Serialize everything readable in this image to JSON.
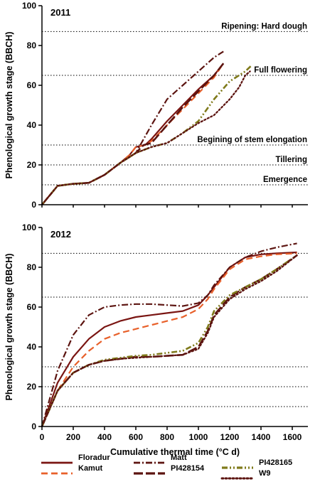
{
  "chart_data": [
    {
      "type": "line",
      "panel_label": "2011",
      "ylabel": "Phenological growth stage (BBCH)",
      "xlim": [
        0,
        1700
      ],
      "ylim": [
        0,
        100
      ],
      "yticks": [
        "0",
        "20",
        "40",
        "60",
        "80",
        "100"
      ],
      "grid": false,
      "reference_lines": [
        {
          "y": 10,
          "label": "Emergence"
        },
        {
          "y": 20,
          "label": "Tillering"
        },
        {
          "y": 30,
          "label": "Begining of stem elongation"
        },
        {
          "y": 65,
          "label": "Full flowering"
        },
        {
          "y": 87,
          "label": "Ripening: Hard dough"
        }
      ],
      "series": [
        {
          "name": "Floradur",
          "color": "#7a1512",
          "dash": "solid",
          "points": [
            [
              0,
              0
            ],
            [
              100,
              9.5
            ],
            [
              200,
              10.5
            ],
            [
              300,
              11
            ],
            [
              400,
              15
            ],
            [
              500,
              21
            ],
            [
              560,
              25
            ],
            [
              600,
              29
            ],
            [
              660,
              30
            ],
            [
              700,
              33
            ],
            [
              800,
              42
            ],
            [
              900,
              50
            ],
            [
              1000,
              58
            ],
            [
              1100,
              65
            ],
            [
              1160,
              71
            ]
          ]
        },
        {
          "name": "Kamut",
          "color": "#e8602a",
          "dash": "dash",
          "points": [
            [
              0,
              0
            ],
            [
              100,
              9.5
            ],
            [
              200,
              10.5
            ],
            [
              300,
              11
            ],
            [
              400,
              15
            ],
            [
              500,
              21
            ],
            [
              560,
              25
            ],
            [
              600,
              29
            ],
            [
              660,
              30
            ],
            [
              700,
              32
            ],
            [
              800,
              40
            ],
            [
              900,
              48
            ],
            [
              1000,
              56
            ],
            [
              1100,
              64
            ],
            [
              1160,
              71
            ]
          ]
        },
        {
          "name": "Matt",
          "color": "#5c1410",
          "dash": "dashdot",
          "points": [
            [
              0,
              0
            ],
            [
              100,
              9.5
            ],
            [
              200,
              10.5
            ],
            [
              300,
              11
            ],
            [
              400,
              15
            ],
            [
              500,
              21
            ],
            [
              600,
              26
            ],
            [
              700,
              40
            ],
            [
              800,
              53
            ],
            [
              900,
              60
            ],
            [
              1000,
              67
            ],
            [
              1100,
              74
            ],
            [
              1160,
              77
            ]
          ]
        },
        {
          "name": "PI428154",
          "color": "#5c1410",
          "dash": "longdash",
          "points": [
            [
              0,
              0
            ],
            [
              100,
              9.5
            ],
            [
              200,
              10.5
            ],
            [
              300,
              11
            ],
            [
              400,
              15
            ],
            [
              500,
              21
            ],
            [
              600,
              26
            ],
            [
              650,
              30
            ],
            [
              700,
              31
            ],
            [
              800,
              40
            ],
            [
              900,
              49
            ],
            [
              1000,
              57
            ],
            [
              1100,
              65
            ],
            [
              1160,
              71
            ]
          ]
        },
        {
          "name": "PI428165",
          "color": "#7f7a1a",
          "dash": "dashdotdot",
          "points": [
            [
              0,
              0
            ],
            [
              100,
              9.5
            ],
            [
              200,
              10.5
            ],
            [
              300,
              11
            ],
            [
              400,
              15
            ],
            [
              500,
              21
            ],
            [
              600,
              26
            ],
            [
              700,
              29
            ],
            [
              800,
              31
            ],
            [
              900,
              36
            ],
            [
              1000,
              42
            ],
            [
              1100,
              53
            ],
            [
              1200,
              62
            ],
            [
              1300,
              67
            ],
            [
              1340,
              70
            ]
          ]
        },
        {
          "name": "W9",
          "color": "#5c1410",
          "dash": "dot",
          "points": [
            [
              0,
              0
            ],
            [
              100,
              9.5
            ],
            [
              200,
              10.5
            ],
            [
              300,
              11
            ],
            [
              400,
              15
            ],
            [
              500,
              21
            ],
            [
              600,
              26
            ],
            [
              700,
              29
            ],
            [
              800,
              31
            ],
            [
              900,
              36
            ],
            [
              1000,
              41
            ],
            [
              1100,
              45
            ],
            [
              1200,
              53
            ],
            [
              1260,
              59
            ],
            [
              1300,
              65
            ],
            [
              1330,
              67
            ]
          ]
        }
      ]
    },
    {
      "type": "line",
      "panel_label": "2012",
      "ylabel": "Phenological growth stage (BBCH)",
      "xlabel": "Cumulative thermal time  (°C d)",
      "xlim": [
        0,
        1700
      ],
      "ylim": [
        0,
        100
      ],
      "xticks": [
        "0",
        "200",
        "400",
        "600",
        "800",
        "1000",
        "1200",
        "1400",
        "1600"
      ],
      "yticks": [
        "0",
        "20",
        "40",
        "60",
        "80",
        "100"
      ],
      "grid": false,
      "reference_lines": [
        {
          "y": 10,
          "label": ""
        },
        {
          "y": 20,
          "label": ""
        },
        {
          "y": 30,
          "label": ""
        },
        {
          "y": 65,
          "label": ""
        },
        {
          "y": 87,
          "label": ""
        }
      ],
      "series": [
        {
          "name": "Floradur",
          "color": "#7a1512",
          "dash": "solid",
          "points": [
            [
              0,
              0
            ],
            [
              100,
              22
            ],
            [
              200,
              35
            ],
            [
              300,
              44
            ],
            [
              400,
              50
            ],
            [
              500,
              53
            ],
            [
              600,
              55
            ],
            [
              700,
              56
            ],
            [
              800,
              57
            ],
            [
              900,
              58
            ],
            [
              1000,
              61
            ],
            [
              1060,
              66
            ],
            [
              1100,
              70
            ],
            [
              1200,
              80
            ],
            [
              1300,
              85
            ],
            [
              1400,
              86.5
            ],
            [
              1500,
              87
            ],
            [
              1630,
              87.5
            ]
          ]
        },
        {
          "name": "Kamut",
          "color": "#e8602a",
          "dash": "dash",
          "points": [
            [
              0,
              0
            ],
            [
              100,
              18
            ],
            [
              200,
              30
            ],
            [
              300,
              38
            ],
            [
              400,
              44
            ],
            [
              500,
              47
            ],
            [
              600,
              49
            ],
            [
              700,
              51
            ],
            [
              800,
              53
            ],
            [
              900,
              55
            ],
            [
              1000,
              59
            ],
            [
              1060,
              64
            ],
            [
              1100,
              69
            ],
            [
              1200,
              79
            ],
            [
              1300,
              84
            ],
            [
              1400,
              85.5
            ],
            [
              1500,
              86.5
            ],
            [
              1630,
              87
            ]
          ]
        },
        {
          "name": "Matt",
          "color": "#5c1410",
          "dash": "dashdot",
          "points": [
            [
              0,
              0
            ],
            [
              100,
              28
            ],
            [
              200,
              46
            ],
            [
              300,
              56
            ],
            [
              400,
              60
            ],
            [
              500,
              61
            ],
            [
              600,
              61.5
            ],
            [
              700,
              61.5
            ],
            [
              800,
              61
            ],
            [
              900,
              60.5
            ],
            [
              1000,
              62
            ],
            [
              1060,
              66
            ],
            [
              1100,
              71
            ],
            [
              1200,
              80
            ],
            [
              1300,
              85
            ],
            [
              1400,
              88
            ],
            [
              1500,
              90
            ],
            [
              1630,
              92
            ]
          ]
        },
        {
          "name": "PI428154",
          "color": "#5c1410",
          "dash": "longdash",
          "points": [
            [
              0,
              0
            ],
            [
              100,
              18
            ],
            [
              200,
              27
            ],
            [
              300,
              31
            ],
            [
              400,
              33
            ],
            [
              500,
              34
            ],
            [
              600,
              35
            ],
            [
              700,
              35
            ],
            [
              800,
              35.5
            ],
            [
              900,
              36
            ],
            [
              1000,
              40
            ],
            [
              1060,
              48
            ],
            [
              1100,
              56
            ],
            [
              1200,
              65
            ],
            [
              1300,
              70
            ],
            [
              1400,
              74
            ],
            [
              1500,
              79
            ],
            [
              1630,
              86
            ]
          ]
        },
        {
          "name": "PI428165",
          "color": "#7f7a1a",
          "dash": "dashdotdot",
          "points": [
            [
              0,
              0
            ],
            [
              100,
              18
            ],
            [
              200,
              27
            ],
            [
              300,
              31
            ],
            [
              400,
              33.5
            ],
            [
              500,
              34.5
            ],
            [
              600,
              35.5
            ],
            [
              700,
              36
            ],
            [
              800,
              37
            ],
            [
              900,
              38
            ],
            [
              1000,
              42
            ],
            [
              1060,
              50
            ],
            [
              1100,
              58
            ],
            [
              1200,
              66
            ],
            [
              1300,
              70
            ],
            [
              1400,
              74
            ],
            [
              1500,
              79
            ],
            [
              1630,
              86
            ]
          ]
        },
        {
          "name": "W9",
          "color": "#5c1410",
          "dash": "dot",
          "points": [
            [
              0,
              0
            ],
            [
              100,
              18
            ],
            [
              200,
              27
            ],
            [
              300,
              31
            ],
            [
              400,
              33
            ],
            [
              500,
              34
            ],
            [
              600,
              34.5
            ],
            [
              700,
              35
            ],
            [
              800,
              35.5
            ],
            [
              900,
              36
            ],
            [
              1000,
              39
            ],
            [
              1060,
              47
            ],
            [
              1100,
              55
            ],
            [
              1200,
              64
            ],
            [
              1300,
              69
            ],
            [
              1400,
              73
            ],
            [
              1500,
              78
            ],
            [
              1630,
              86
            ]
          ]
        }
      ]
    }
  ],
  "legend": {
    "placement": "bottom",
    "entries": [
      "Floradur",
      "Kamut",
      "Matt",
      "PI428154",
      "PI428165",
      "W9"
    ]
  }
}
